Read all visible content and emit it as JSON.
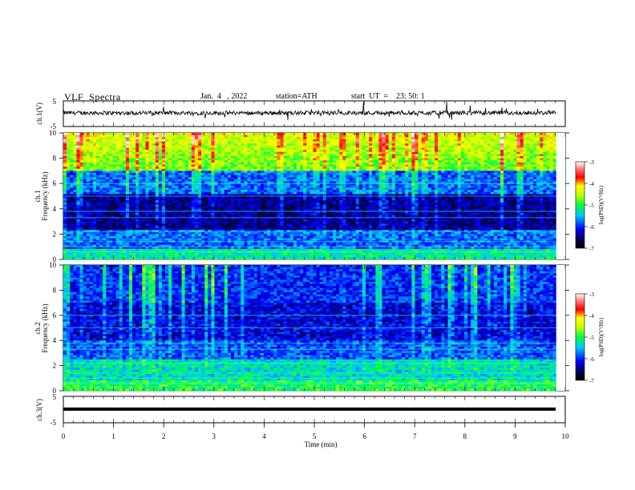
{
  "header": {
    "title": "VLF  Spectra",
    "date": "Jan.  4   , 2022",
    "station": "station=ATH",
    "start": "start  UT  =    23: 50: 1"
  },
  "chart_data": [
    {
      "type": "line",
      "name": "ch1-waveform",
      "ylabel": "ch.1(V)",
      "ylim": [
        -5,
        5
      ],
      "yticks": [
        5,
        -5
      ],
      "xlim": [
        0,
        10
      ],
      "x_data_end": 9.82
    },
    {
      "type": "heatmap",
      "name": "ch1-spectrogram",
      "ylabel": "ch.1\nFrequency  (kHz)",
      "ylim": [
        0,
        10
      ],
      "yticks": [
        0,
        2,
        4,
        6,
        8,
        10
      ],
      "xlim": [
        0,
        10
      ],
      "x_data_end": 9.82,
      "colorbar": {
        "label": "log(PSD)(V²/Hz)",
        "range": [
          -7,
          -3
        ],
        "ticks": [
          -3,
          -4,
          -5,
          -6,
          -7
        ]
      }
    },
    {
      "type": "heatmap",
      "name": "ch2-spectrogram",
      "ylabel": "ch.2\nFrequency  (kHz)",
      "ylim": [
        0,
        10
      ],
      "yticks": [
        0,
        2,
        4,
        6,
        8,
        10
      ],
      "xlim": [
        0,
        10
      ],
      "x_data_end": 9.82,
      "colorbar": {
        "label": "log(PSD)(V²/Hz)",
        "range": [
          -7,
          -3
        ],
        "ticks": [
          -3,
          -4,
          -5,
          -6,
          -7
        ]
      }
    },
    {
      "type": "line",
      "name": "ch3-waveform",
      "ylabel": "ch.3(V)",
      "ylim": [
        -5,
        5
      ],
      "yticks": [
        5,
        -5
      ],
      "xlim": [
        0,
        10
      ],
      "x_data_end": 9.82,
      "xlabel": "Time  (min)",
      "xticks": [
        0,
        1,
        2,
        3,
        4,
        5,
        6,
        7,
        8,
        9,
        10
      ]
    }
  ]
}
